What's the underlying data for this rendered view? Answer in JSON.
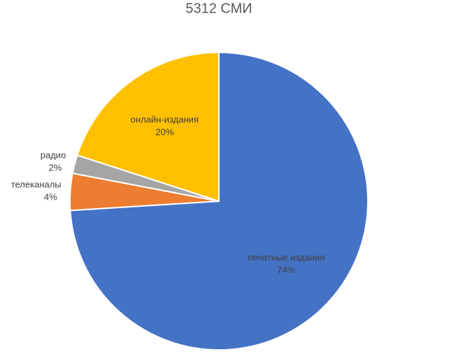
{
  "chart_data": {
    "type": "pie",
    "title": "5312 СМИ",
    "categories": [
      "печатные издания",
      "телеканалы",
      "радио",
      "онлайн-издания"
    ],
    "values": [
      74,
      4,
      2,
      20
    ],
    "value_labels": [
      "74%",
      "4%",
      "2%",
      "20%"
    ],
    "colors": [
      "#4472c4",
      "#ed7d31",
      "#a5a5a5",
      "#ffc000"
    ]
  }
}
